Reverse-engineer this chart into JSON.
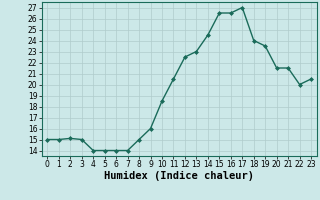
{
  "x": [
    0,
    1,
    2,
    3,
    4,
    5,
    6,
    7,
    8,
    9,
    10,
    11,
    12,
    13,
    14,
    15,
    16,
    17,
    18,
    19,
    20,
    21,
    22,
    23
  ],
  "y": [
    15,
    15,
    15.1,
    15,
    14,
    14,
    14,
    14,
    15,
    16,
    18.5,
    20.5,
    22.5,
    23,
    24.5,
    26.5,
    26.5,
    27,
    24,
    23.5,
    21.5,
    21.5,
    20,
    20.5
  ],
  "line_color": "#1a6b5a",
  "marker": "D",
  "marker_size": 2.0,
  "bg_color": "#cce8e8",
  "grid_color": "#b8d8d8",
  "xlabel": "Humidex (Indice chaleur)",
  "xlim": [
    -0.5,
    23.5
  ],
  "ylim": [
    13.5,
    27.5
  ],
  "yticks": [
    14,
    15,
    16,
    17,
    18,
    19,
    20,
    21,
    22,
    23,
    24,
    25,
    26,
    27
  ],
  "xticks": [
    0,
    1,
    2,
    3,
    4,
    5,
    6,
    7,
    8,
    9,
    10,
    11,
    12,
    13,
    14,
    15,
    16,
    17,
    18,
    19,
    20,
    21,
    22,
    23
  ],
  "tick_fontsize": 5.5,
  "xlabel_fontsize": 7.5,
  "line_width": 1.0
}
